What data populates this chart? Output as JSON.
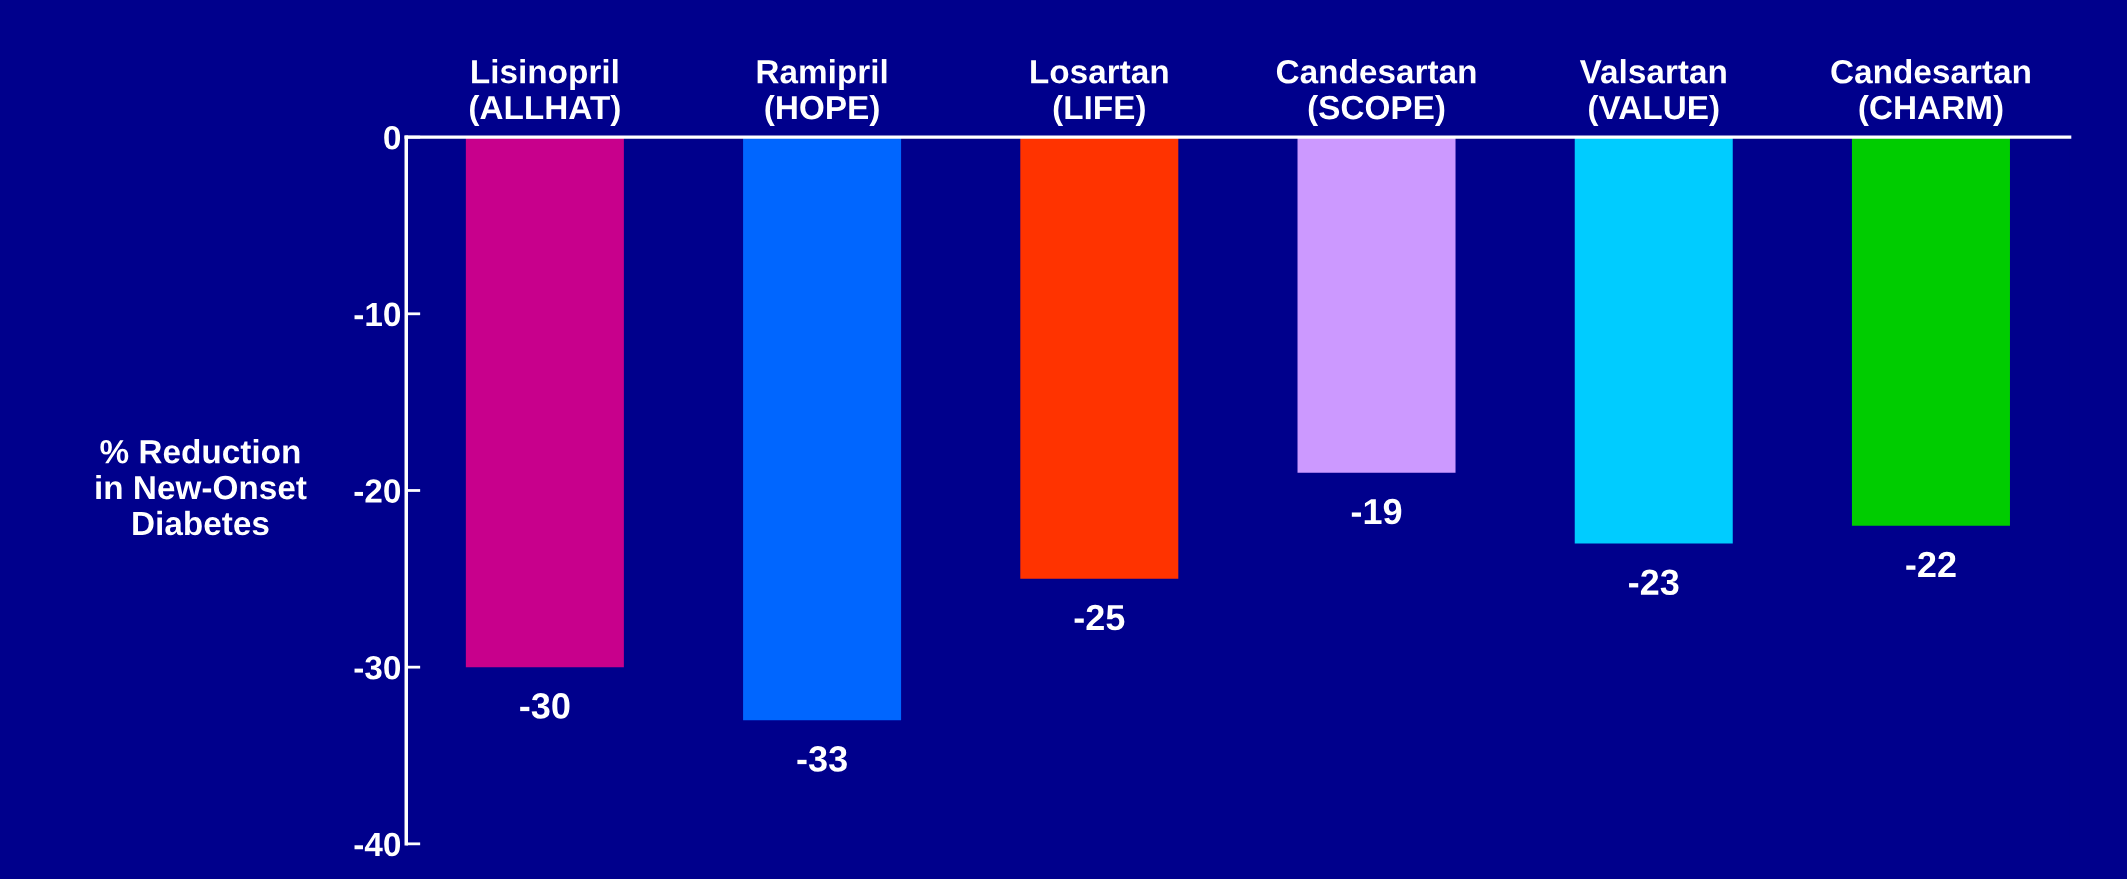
{
  "chart_data": {
    "type": "bar",
    "categories": [
      "Lisinopril\n(ALLHAT)",
      "Ramipril\n(HOPE)",
      "Losartan\n(LIFE)",
      "Candesartan\n(SCOPE)",
      "Valsartan\n(VALUE)",
      "Candesartan\n(CHARM)"
    ],
    "values": [
      -30,
      -33,
      -25,
      -19,
      -23,
      -22
    ],
    "colors": [
      "#c8008c",
      "#0066ff",
      "#ff3300",
      "#cc99ff",
      "#00ccff",
      "#00cc00"
    ],
    "ylabel": "% Reduction\nin New-Onset\nDiabetes",
    "ylim": [
      -40,
      0
    ],
    "yticks": [
      0,
      -10,
      -20,
      -30,
      -40
    ],
    "data_labels": true,
    "grid": false,
    "legend": false
  }
}
